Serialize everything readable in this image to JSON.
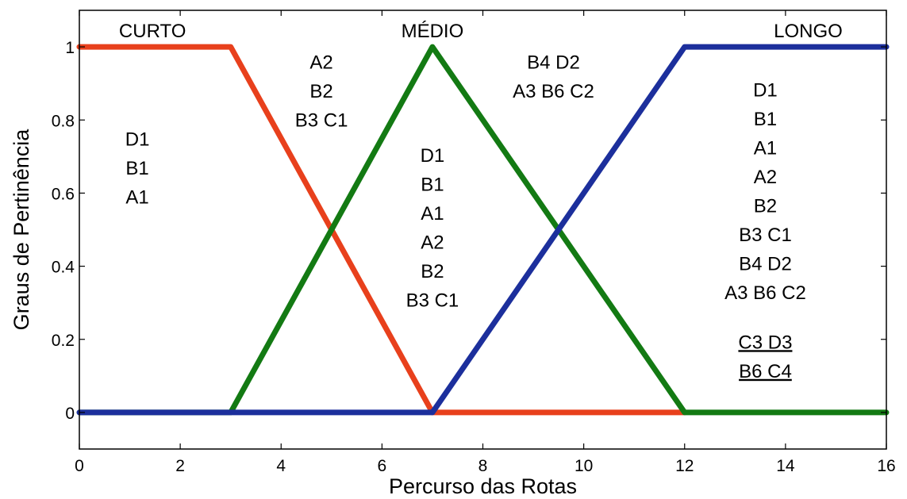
{
  "chart_data": {
    "type": "line",
    "title": "",
    "xlabel": "Percurso das Rotas",
    "ylabel": "Graus de Pertinência",
    "xlim": [
      0,
      16
    ],
    "ylim": [
      -0.1,
      1.1
    ],
    "xticks": [
      0,
      2,
      4,
      6,
      8,
      10,
      12,
      14,
      16
    ],
    "yticks": [
      0,
      0.2,
      0.4,
      0.6,
      0.8,
      1
    ],
    "xtick_labels": [
      "0",
      "2",
      "4",
      "6",
      "8",
      "10",
      "12",
      "14",
      "16"
    ],
    "ytick_labels": [
      "0",
      "0.2",
      "0.4",
      "0.6",
      "0.8",
      "1"
    ],
    "grid": false,
    "series": [
      {
        "name": "CURTO",
        "color": "#e8401c",
        "x": [
          0,
          3,
          7,
          12
        ],
        "y": [
          1,
          1,
          0,
          0
        ]
      },
      {
        "name": "MÉDIO",
        "color": "#137a13",
        "x": [
          0,
          3,
          7,
          12,
          16
        ],
        "y": [
          0,
          0,
          1,
          0,
          0
        ]
      },
      {
        "name": "LONGO",
        "color": "#1c2f9c",
        "x": [
          0,
          7,
          12,
          16
        ],
        "y": [
          0,
          0,
          1,
          1
        ]
      }
    ],
    "annotations": [
      {
        "lines": [
          "D1",
          "B1",
          "A1"
        ],
        "x": 1.15,
        "y": 0.73
      },
      {
        "lines": [
          "A2",
          "B2",
          "B3 C1"
        ],
        "x": 4.8,
        "y": 0.94
      },
      {
        "lines": [
          "D1",
          "B1",
          "A1",
          "A2",
          "B2",
          "B3 C1"
        ],
        "x": 7,
        "y": 0.685
      },
      {
        "lines": [
          "B4 D2",
          "A3 B6 C2"
        ],
        "x": 9.4,
        "y": 0.94
      },
      {
        "lines": [
          "D1",
          "B1",
          "A1",
          "A2",
          "B2",
          "B3 C1",
          "B4 D2",
          "A3 B6 C2"
        ],
        "x": 13.6,
        "y": 0.865
      },
      {
        "lines": [
          "C3 D3",
          "B6 C4"
        ],
        "x": 13.6,
        "y": 0.175,
        "underline": true
      }
    ]
  }
}
